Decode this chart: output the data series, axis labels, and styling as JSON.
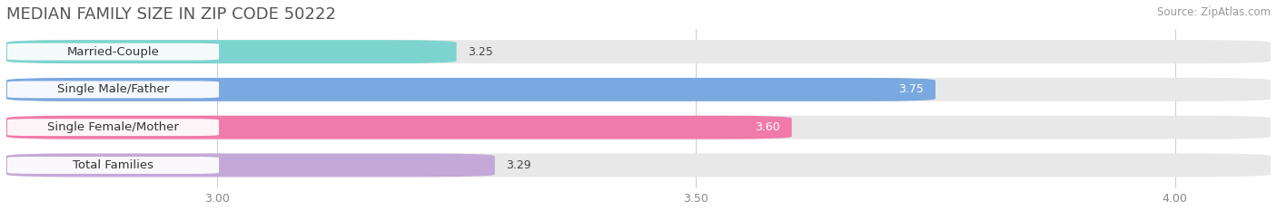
{
  "title": "MEDIAN FAMILY SIZE IN ZIP CODE 50222",
  "source": "Source: ZipAtlas.com",
  "categories": [
    "Married-Couple",
    "Single Male/Father",
    "Single Female/Mother",
    "Total Families"
  ],
  "values": [
    3.25,
    3.75,
    3.6,
    3.29
  ],
  "bar_colors": [
    "#7DD4CE",
    "#7AA8E0",
    "#F07AAA",
    "#C4A8D8"
  ],
  "label_colors": [
    "#444444",
    "#ffffff",
    "#ffffff",
    "#444444"
  ],
  "xlim": [
    2.78,
    4.1
  ],
  "xmin": 2.78,
  "xticks": [
    3.0,
    3.5,
    4.0
  ],
  "bar_height": 0.62,
  "background_color": "#f0f0f0",
  "bar_bg_color": "#e8e8e8",
  "title_fontsize": 13,
  "label_fontsize": 9.5,
  "value_fontsize": 9,
  "source_fontsize": 8.5,
  "title_color": "#555555",
  "source_color": "#999999",
  "tick_color": "#888888"
}
